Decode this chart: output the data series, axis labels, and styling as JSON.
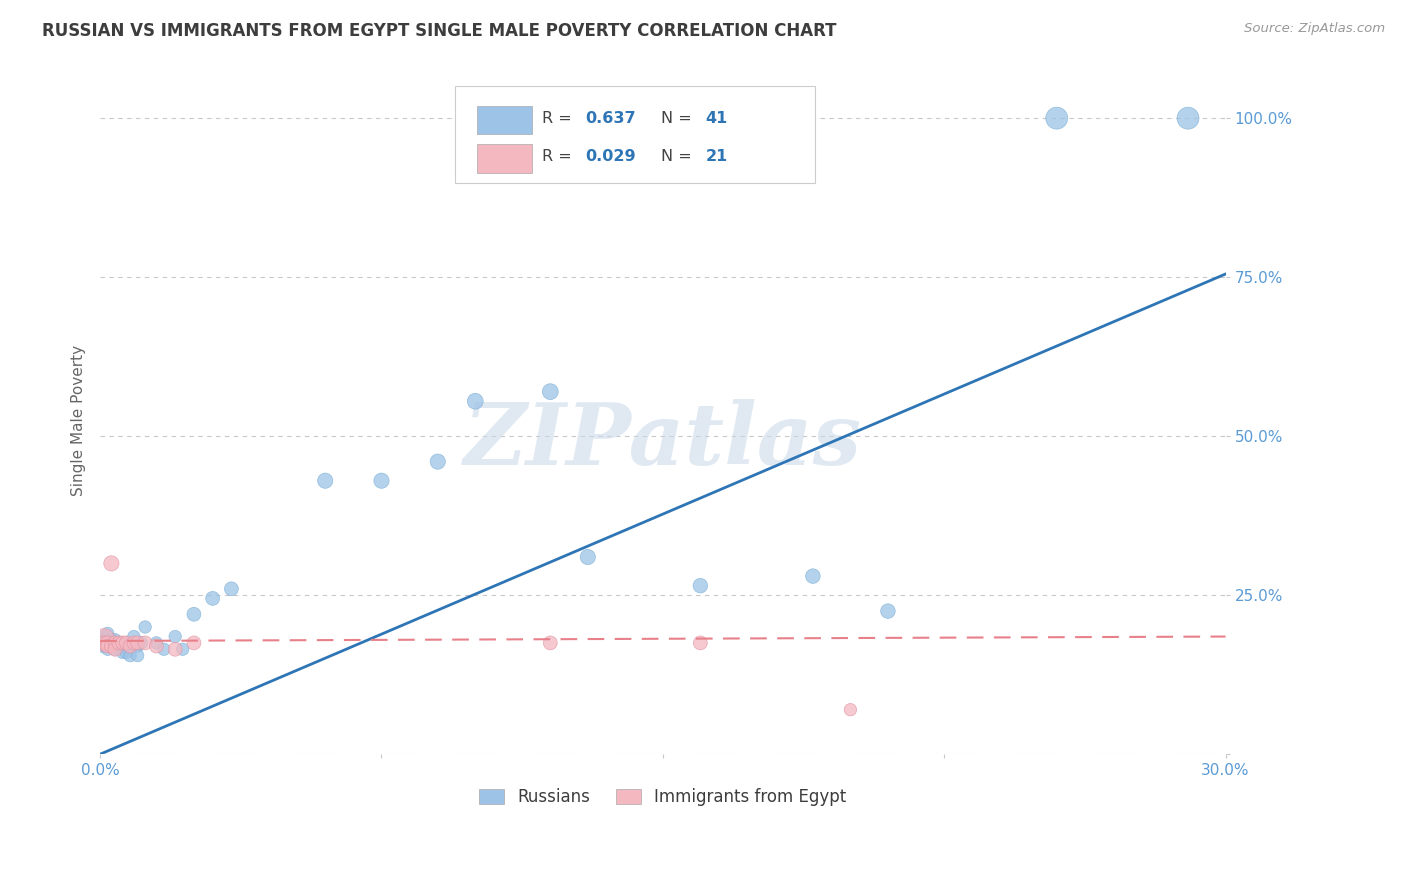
{
  "title": "RUSSIAN VS IMMIGRANTS FROM EGYPT SINGLE MALE POVERTY CORRELATION CHART",
  "source": "Source: ZipAtlas.com",
  "ylabel": "Single Male Poverty",
  "legend_russians": "Russians",
  "legend_egypt": "Immigrants from Egypt",
  "R_russians": "0.637",
  "N_russians": "41",
  "R_egypt": "0.029",
  "N_egypt": "21",
  "title_color": "#3d3d3d",
  "source_color": "#999999",
  "tick_color": "#5b9bd5",
  "ylabel_color": "#666666",
  "russian_color": "#9dc3e6",
  "egypt_color": "#f4b8c1",
  "russian_line_color": "#2e75b6",
  "egypt_line_color": "#e8808a",
  "grid_color": "#c8c8c8",
  "watermark": "ZIPatlas",
  "background_color": "#ffffff",
  "russians_x": [
    0.001,
    0.001,
    0.002,
    0.002,
    0.002,
    0.003,
    0.003,
    0.003,
    0.004,
    0.004,
    0.004,
    0.005,
    0.005,
    0.006,
    0.006,
    0.007,
    0.007,
    0.008,
    0.009,
    0.01,
    0.01,
    0.011,
    0.012,
    0.015,
    0.017,
    0.02,
    0.022,
    0.025,
    0.03,
    0.035,
    0.06,
    0.075,
    0.09,
    0.1,
    0.12,
    0.13,
    0.16,
    0.19,
    0.21,
    0.255,
    0.29
  ],
  "russians_y": [
    0.175,
    0.185,
    0.165,
    0.175,
    0.19,
    0.17,
    0.18,
    0.175,
    0.175,
    0.18,
    0.165,
    0.17,
    0.175,
    0.17,
    0.16,
    0.175,
    0.16,
    0.155,
    0.185,
    0.17,
    0.155,
    0.175,
    0.2,
    0.175,
    0.165,
    0.185,
    0.165,
    0.22,
    0.245,
    0.26,
    0.43,
    0.43,
    0.46,
    0.555,
    0.57,
    0.31,
    0.265,
    0.28,
    0.225,
    1.0,
    1.0
  ],
  "egypt_x": [
    0.001,
    0.001,
    0.002,
    0.002,
    0.003,
    0.003,
    0.004,
    0.004,
    0.005,
    0.006,
    0.007,
    0.008,
    0.009,
    0.01,
    0.012,
    0.015,
    0.02,
    0.025,
    0.12,
    0.16,
    0.2
  ],
  "egypt_y": [
    0.18,
    0.175,
    0.175,
    0.17,
    0.3,
    0.17,
    0.175,
    0.165,
    0.175,
    0.175,
    0.175,
    0.17,
    0.175,
    0.175,
    0.175,
    0.17,
    0.165,
    0.175,
    0.175,
    0.175,
    0.07
  ],
  "russians_sizes": [
    200,
    80,
    80,
    80,
    80,
    80,
    80,
    80,
    80,
    80,
    80,
    80,
    80,
    80,
    80,
    80,
    80,
    80,
    80,
    80,
    80,
    80,
    80,
    80,
    80,
    80,
    80,
    100,
    100,
    100,
    120,
    120,
    120,
    130,
    130,
    120,
    110,
    110,
    110,
    250,
    250
  ],
  "egypt_sizes": [
    250,
    100,
    100,
    100,
    120,
    100,
    100,
    100,
    100,
    100,
    100,
    100,
    100,
    100,
    100,
    100,
    100,
    100,
    100,
    100,
    80
  ],
  "rus_line_x": [
    0.0,
    0.3
  ],
  "rus_line_y": [
    0.0,
    0.755
  ],
  "egy_line_x": [
    0.0,
    0.3
  ],
  "egy_line_y": [
    0.178,
    0.185
  ],
  "xlim": [
    0.0,
    0.3
  ],
  "ylim": [
    0.0,
    1.05
  ],
  "y_ticks": [
    0.0,
    0.25,
    0.5,
    0.75,
    1.0
  ],
  "y_tick_labels": [
    "",
    "25.0%",
    "50.0%",
    "75.0%",
    "100.0%"
  ],
  "x_ticks": [
    0.0,
    0.075,
    0.15,
    0.225,
    0.3
  ],
  "x_tick_labels": [
    "0.0%",
    "",
    "",
    "",
    "30.0%"
  ]
}
